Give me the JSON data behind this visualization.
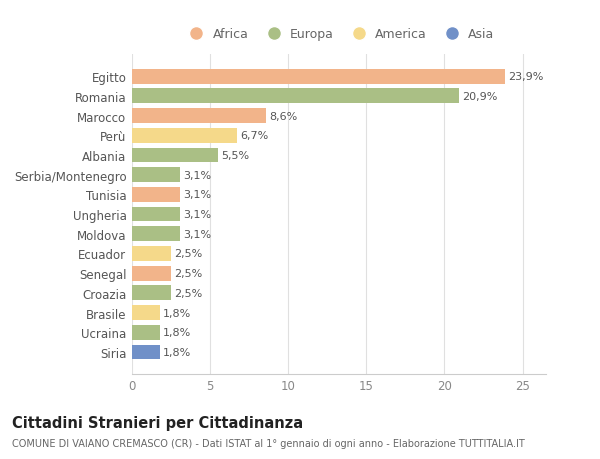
{
  "countries": [
    "Egitto",
    "Romania",
    "Marocco",
    "Perù",
    "Albania",
    "Serbia/Montenegro",
    "Tunisia",
    "Ungheria",
    "Moldova",
    "Ecuador",
    "Senegal",
    "Croazia",
    "Brasile",
    "Ucraina",
    "Siria"
  ],
  "values": [
    23.9,
    20.9,
    8.6,
    6.7,
    5.5,
    3.1,
    3.1,
    3.1,
    3.1,
    2.5,
    2.5,
    2.5,
    1.8,
    1.8,
    1.8
  ],
  "labels": [
    "23,9%",
    "20,9%",
    "8,6%",
    "6,7%",
    "5,5%",
    "3,1%",
    "3,1%",
    "3,1%",
    "3,1%",
    "2,5%",
    "2,5%",
    "2,5%",
    "1,8%",
    "1,8%",
    "1,8%"
  ],
  "continents": [
    "Africa",
    "Europa",
    "Africa",
    "America",
    "Europa",
    "Europa",
    "Africa",
    "Europa",
    "Europa",
    "America",
    "Africa",
    "Europa",
    "America",
    "Europa",
    "Asia"
  ],
  "colors": {
    "Africa": "#F2B48A",
    "Europa": "#AABF85",
    "America": "#F5D98A",
    "Asia": "#7090C8"
  },
  "legend_order": [
    "Africa",
    "Europa",
    "America",
    "Asia"
  ],
  "legend_colors": [
    "#F2B48A",
    "#AABF85",
    "#F5D98A",
    "#7090C8"
  ],
  "background_color": "#ffffff",
  "plot_bg_color": "#ffffff",
  "grid_color": "#e0e0e0",
  "xlim": [
    0,
    26.5
  ],
  "xticks": [
    0,
    5,
    10,
    15,
    20,
    25
  ],
  "title": "Cittadini Stranieri per Cittadinanza",
  "subtitle": "COMUNE DI VAIANO CREMASCO (CR) - Dati ISTAT al 1° gennaio di ogni anno - Elaborazione TUTTITALIA.IT"
}
